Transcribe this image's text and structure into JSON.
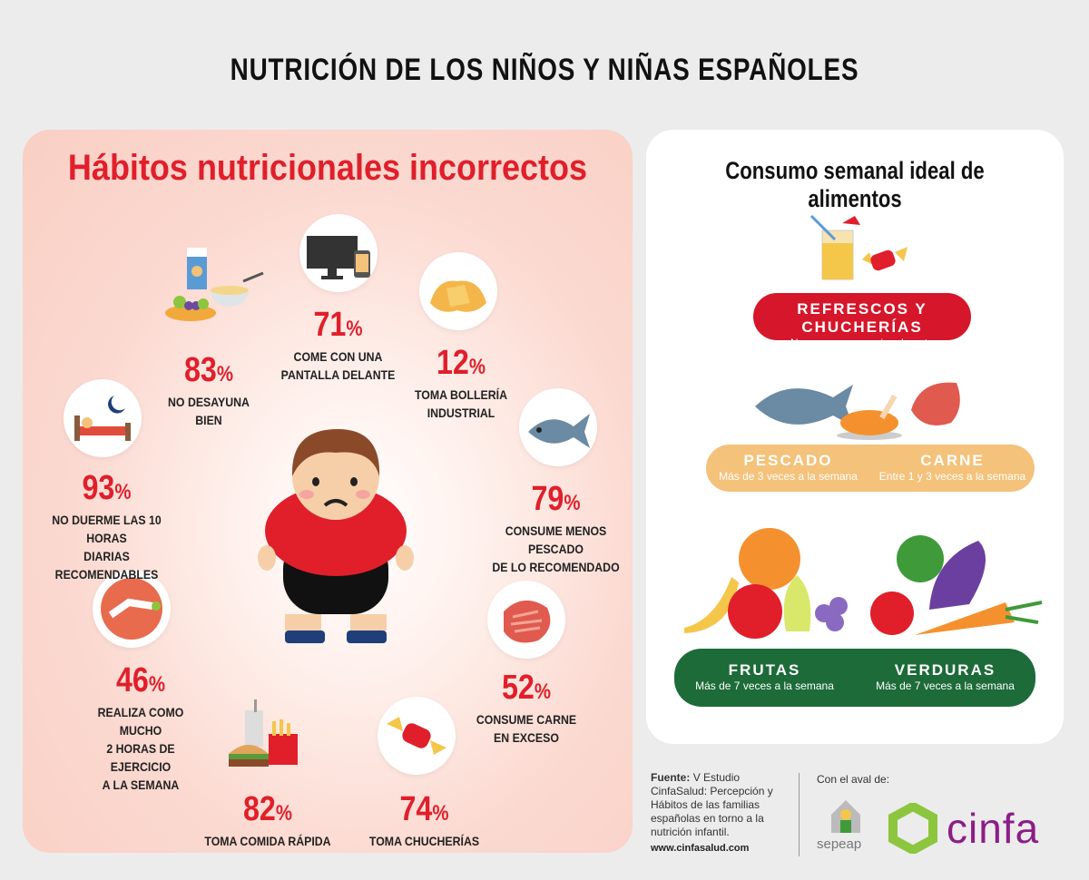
{
  "title": "NUTRICIÓN DE LOS NIÑOS Y NIÑAS ESPAÑOLES",
  "left": {
    "title": "Hábitos nutricionales incorrectos",
    "stats": [
      {
        "pct": "83",
        "label1": "NO DESAYUNA",
        "label2": "BIEN",
        "label3": ""
      },
      {
        "pct": "71",
        "label1": "COME CON UNA",
        "label2": "PANTALLA DELANTE",
        "label3": ""
      },
      {
        "pct": "12",
        "label1": "TOMA BOLLERÍA",
        "label2": "INDUSTRIAL",
        "label3": ""
      },
      {
        "pct": "93",
        "label1": "NO DUERME LAS 10 HORAS",
        "label2": "DIARIAS RECOMENDABLES",
        "label3": ""
      },
      {
        "pct": "79",
        "label1": "CONSUME MENOS PESCADO",
        "label2": "DE LO RECOMENDADO",
        "label3": ""
      },
      {
        "pct": "46",
        "label1": "REALIZA COMO MUCHO",
        "label2": "2 HORAS DE EJERCICIO",
        "label3": "A LA SEMANA"
      },
      {
        "pct": "52",
        "label1": "CONSUME CARNE",
        "label2": "EN EXCESO",
        "label3": ""
      },
      {
        "pct": "82",
        "label1": "TOMA  COMIDA RÁPIDA",
        "label2": "",
        "label3": ""
      },
      {
        "pct": "74",
        "label1": "TOMA  CHUCHERÍAS",
        "label2": "",
        "label3": ""
      }
    ],
    "pct_sign": "%"
  },
  "right": {
    "title": "Consumo semanal ideal de alimentos",
    "refrescos": {
      "title": "REFRESCOS Y CHUCHERÍAS",
      "sub": "Nunca o muy ocasionalmente"
    },
    "pescado": {
      "title": "PESCADO",
      "sub": "Más de 3 veces a la semana"
    },
    "carne": {
      "title": "CARNE",
      "sub": "Entre 1 y 3 veces a la semana"
    },
    "frutas": {
      "title": "FRUTAS",
      "sub": "Más de 7 veces a la semana"
    },
    "verduras": {
      "title": "VERDURAS",
      "sub": "Más de 7 veces a la semana"
    }
  },
  "footer": {
    "source_label": "Fuente:",
    "source_text": "V Estudio CinfaSalud: Percepción y Hábitos de las familias españolas en torno a la nutrición infantil.",
    "url": "www.cinfasalud.com",
    "aval": "Con el aval de:",
    "sepeap": "sepeap",
    "cinfa": "cinfa"
  },
  "colors": {
    "red": "#e01f2b",
    "orange": "#f4c27a",
    "green": "#1d6b38",
    "cinfa": "#8b1e87",
    "cinfa_green": "#8cc63f"
  }
}
